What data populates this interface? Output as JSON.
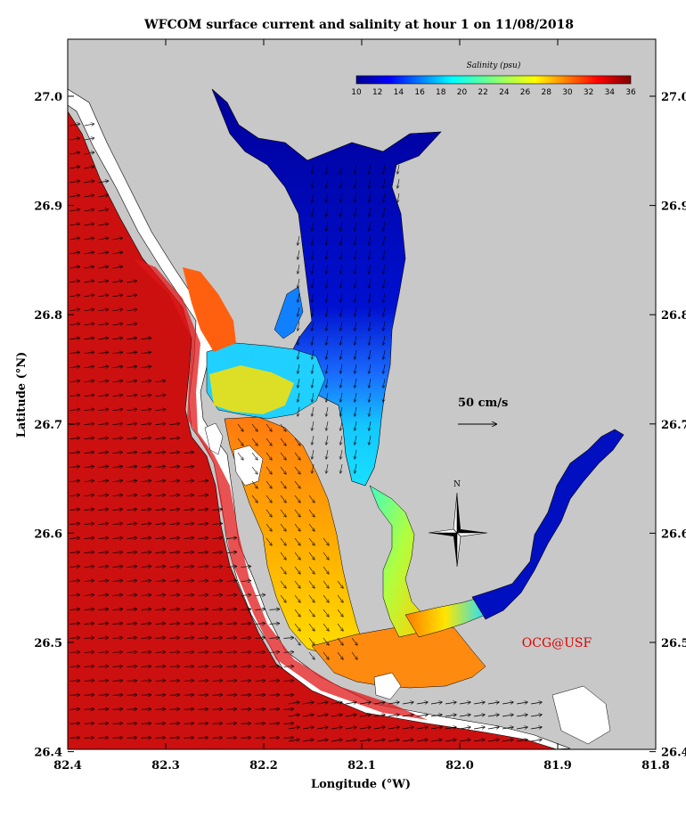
{
  "title": "WFCOM surface current and salinity at hour 1 on 11/08/2018",
  "axes": {
    "xlabel": "Longitude (°W)",
    "ylabel": "Latitude (°N)",
    "xticks": [
      "82.4",
      "82.3",
      "82.2",
      "82.1",
      "82.0",
      "81.9",
      "81.8"
    ],
    "yticks": [
      "27.0",
      "26.9",
      "26.8",
      "26.7",
      "26.6",
      "26.5",
      "26.4"
    ],
    "xlim": [
      82.4,
      81.8
    ],
    "ylim": [
      26.4,
      27.05
    ]
  },
  "colorbar": {
    "title": "Salinity (psu)",
    "ticks": [
      "10",
      "12",
      "14",
      "16",
      "18",
      "20",
      "22",
      "24",
      "26",
      "28",
      "30",
      "32",
      "34",
      "36"
    ],
    "range": [
      10,
      36
    ]
  },
  "scale_arrow": {
    "label": "50 cm/s",
    "value_cm_s": 50
  },
  "north_arrow": {
    "label": "N"
  },
  "credit": "OCG@USF",
  "colors": {
    "land": "#c8c8c8",
    "dry": "#ffffff",
    "gulf": "#cc1010",
    "credit": "#e00000"
  }
}
